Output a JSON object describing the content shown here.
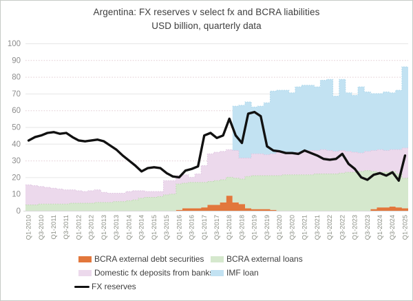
{
  "figure": {
    "title": "Argentina: FX reserves v select fx and BCRA liabilities",
    "subtitle": "USD billion, quarterly data"
  },
  "legend": {
    "items": [
      {
        "label": "BCRA external debt securities",
        "color": "#e2773c",
        "type": "box"
      },
      {
        "label": "BCRA external loans",
        "color": "#d5e8cd",
        "type": "box"
      },
      {
        "label": "Domestic fx deposits from banks",
        "color": "#ecd9ec",
        "type": "box"
      },
      {
        "label": "IMF loan",
        "color": "#c2e2f2",
        "type": "box"
      },
      {
        "label": "FX reserves",
        "color": "#111111",
        "type": "line"
      }
    ]
  },
  "chart_data": {
    "type": "area",
    "subtype": "stacked-step-area-with-line",
    "title": "Argentina: FX reserves v select fx and BCRA liabilities",
    "subtitle": "USD billion, quarterly data",
    "xlabel": "",
    "ylabel": "USD billion",
    "ylim": [
      0,
      100
    ],
    "yticks": [
      0,
      10,
      20,
      30,
      40,
      50,
      60,
      70,
      80,
      90,
      100
    ],
    "grid": true,
    "legend_position": "bottom",
    "x": [
      "Q1-2010",
      "Q2-2010",
      "Q3-2010",
      "Q4-2010",
      "Q1-2011",
      "Q2-2011",
      "Q3-2011",
      "Q4-2011",
      "Q1-2012",
      "Q2-2012",
      "Q3-2012",
      "Q4-2012",
      "Q1-2013",
      "Q2-2013",
      "Q3-2013",
      "Q4-2013",
      "Q1-2014",
      "Q2-2014",
      "Q3-2014",
      "Q4-2014",
      "Q1-2015",
      "Q2-2015",
      "Q3-2015",
      "Q4-2015",
      "Q1-2016",
      "Q2-2016",
      "Q3-2016",
      "Q4-2016",
      "Q1-2017",
      "Q2-2017",
      "Q3-2017",
      "Q4-2017",
      "Q1-2018",
      "Q2-2018",
      "Q3-2018",
      "Q4-2018",
      "Q1-2019",
      "Q2-2019",
      "Q3-2019",
      "Q4-2019",
      "Q1-2020",
      "Q2-2020",
      "Q3-2020",
      "Q4-2020",
      "Q1-2021",
      "Q2-2021",
      "Q3-2021",
      "Q4-2021",
      "Q1-2022",
      "Q2-2022",
      "Q3-2022",
      "Q4-2022",
      "Q1-2023",
      "Q2-2023",
      "Q3-2023",
      "Q4-2023",
      "Q1-2024",
      "Q2-2024",
      "Q3-2024",
      "Q4-2024",
      "Q1-2025"
    ],
    "x_ticks_shown": "every second quarter (Q1 and Q3 of each year)",
    "series": [
      {
        "name": "BCRA external debt securities",
        "color": "#e2773c",
        "values": [
          0,
          0,
          0,
          0,
          0,
          0,
          0,
          0,
          0,
          0,
          0,
          0,
          0,
          0,
          0,
          0,
          0,
          0,
          0,
          0,
          0,
          0,
          0,
          0,
          0.5,
          1.5,
          1.5,
          1.5,
          2,
          3.5,
          3.5,
          5,
          9,
          5,
          4,
          1.5,
          1,
          1,
          1,
          0.5,
          0,
          0,
          0,
          0,
          0,
          0,
          0,
          0,
          0,
          0,
          0,
          0,
          0,
          0,
          0,
          1,
          2,
          2,
          2.5,
          2,
          1.5
        ]
      },
      {
        "name": "BCRA external loans",
        "color": "#d5e8cd",
        "values": [
          3.5,
          3.5,
          4,
          4,
          4,
          4,
          4,
          4.5,
          4.5,
          4.5,
          4.5,
          5,
          5,
          5,
          5.5,
          5.5,
          6,
          6.5,
          7.5,
          8,
          8,
          8.5,
          9.5,
          10,
          15.5,
          15,
          15.5,
          15.5,
          15,
          14,
          14.5,
          13.5,
          11,
          14.5,
          15,
          19,
          20,
          20,
          20,
          20.5,
          21,
          21.5,
          21.5,
          21.5,
          21.5,
          21.5,
          22,
          22,
          22,
          22,
          22.5,
          23,
          23,
          23.5,
          24,
          22.5,
          21,
          21,
          21,
          20,
          18
        ]
      },
      {
        "name": "Domestic fx deposits from banks",
        "color": "#ecd9ec",
        "values": [
          12,
          11.5,
          10.5,
          10,
          9.5,
          9,
          8.5,
          8,
          7.5,
          7,
          7.5,
          7.5,
          6,
          5.5,
          5,
          5,
          5.5,
          5.5,
          4.5,
          3.5,
          3.5,
          3,
          8.5,
          8,
          5,
          5,
          3,
          5,
          10,
          16.5,
          17,
          17,
          16.5,
          16.5,
          12.5,
          11,
          13,
          13,
          12.5,
          13,
          14,
          13.5,
          13,
          13.5,
          14,
          14.5,
          14,
          14.5,
          14,
          13.5,
          13.5,
          12.5,
          12,
          11,
          11.5,
          12.5,
          13.5,
          13,
          13,
          14.5,
          18
        ]
      },
      {
        "name": "IMF loan",
        "color": "#c2e2f2",
        "values": [
          0,
          0,
          0,
          0,
          0,
          0,
          0,
          0,
          0,
          0,
          0,
          0,
          0,
          0,
          0,
          0,
          0,
          0,
          0,
          0,
          0,
          0,
          0,
          0,
          0,
          0,
          0,
          0,
          0,
          0,
          0,
          0,
          0,
          26.5,
          31.5,
          33.5,
          28,
          28.5,
          31,
          37.5,
          37,
          37,
          36,
          39,
          39.5,
          39,
          38,
          41.5,
          42.5,
          33,
          42.5,
          35,
          34,
          39.5,
          35.5,
          34,
          33.5,
          35,
          34,
          35.5,
          48.5
        ]
      }
    ],
    "line_series": {
      "name": "FX reserves",
      "color": "#111111",
      "values": [
        42,
        44,
        45,
        46.5,
        47,
        46,
        46.5,
        44,
        42,
        41.5,
        42,
        42.5,
        41.5,
        39,
        36.5,
        33,
        30,
        27,
        23.5,
        25.5,
        26,
        25.5,
        22.5,
        20.5,
        20,
        24,
        25,
        26.5,
        45,
        46.5,
        43.5,
        45,
        55,
        45,
        40.5,
        58,
        59,
        56.5,
        38.5,
        36,
        35.5,
        34.5,
        34.5,
        34,
        36,
        34.5,
        33,
        31,
        30.5,
        31,
        34,
        28,
        25,
        20,
        18.5,
        21.5,
        22.5,
        21,
        23,
        18,
        33
      ]
    }
  }
}
